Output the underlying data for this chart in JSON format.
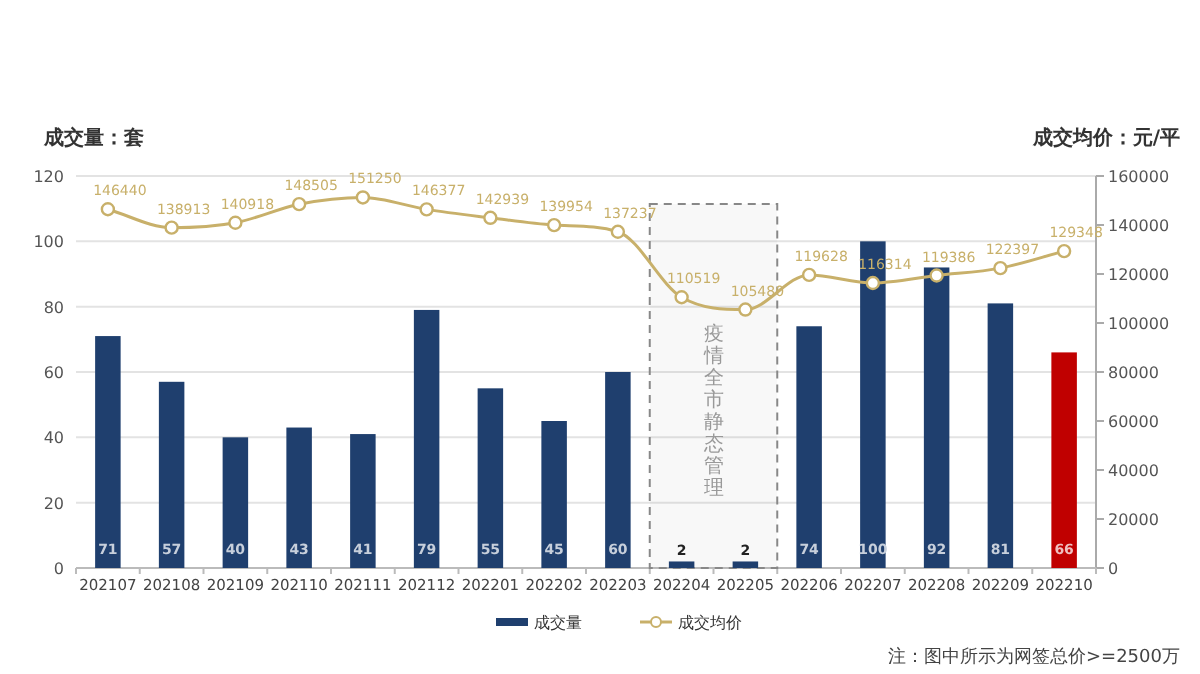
{
  "chart_data": {
    "type": "bar",
    "ylabel": "成交量：套",
    "y2label": "成交均价：元/平",
    "categories": [
      "202107",
      "202108",
      "202109",
      "202110",
      "202111",
      "202112",
      "202201",
      "202202",
      "202203",
      "202204",
      "202205",
      "202206",
      "202207",
      "202208",
      "202209",
      "202210"
    ],
    "series": [
      {
        "name": "成交量",
        "color": "#1f3f6e",
        "colors": [
          "#1f3f6e",
          "#1f3f6e",
          "#1f3f6e",
          "#1f3f6e",
          "#1f3f6e",
          "#1f3f6e",
          "#1f3f6e",
          "#1f3f6e",
          "#1f3f6e",
          "#1f3f6e",
          "#1f3f6e",
          "#1f3f6e",
          "#1f3f6e",
          "#1f3f6e",
          "#1f3f6e",
          "#c00000"
        ],
        "values": [
          71,
          57,
          40,
          43,
          41,
          79,
          55,
          45,
          60,
          2,
          2,
          74,
          100,
          92,
          81,
          66
        ]
      },
      {
        "name": "成交均价",
        "type": "line",
        "axis": "y2",
        "color": "#c8b06a",
        "marker": "circle",
        "values": [
          146440,
          138913,
          140918,
          148505,
          151250,
          146377,
          142939,
          139954,
          137237,
          110519,
          105480,
          119628,
          116314,
          119386,
          122397,
          129348
        ]
      }
    ],
    "ylim": [
      0,
      120
    ],
    "yticks": [
      0,
      20,
      40,
      60,
      80,
      100,
      120
    ],
    "y2lim": [
      0,
      160000
    ],
    "y2ticks": [
      0,
      20000,
      40000,
      60000,
      80000,
      100000,
      120000,
      140000,
      160000
    ],
    "bands": [
      {
        "axis": "x",
        "from": "202204",
        "to": "202205",
        "label": "疫情全市静态管理",
        "color": "#888888"
      }
    ],
    "data_labels": true,
    "grid": "y",
    "legend": "bottom",
    "annotations": [
      "注：图中所示为网签总价>=2500万"
    ]
  }
}
